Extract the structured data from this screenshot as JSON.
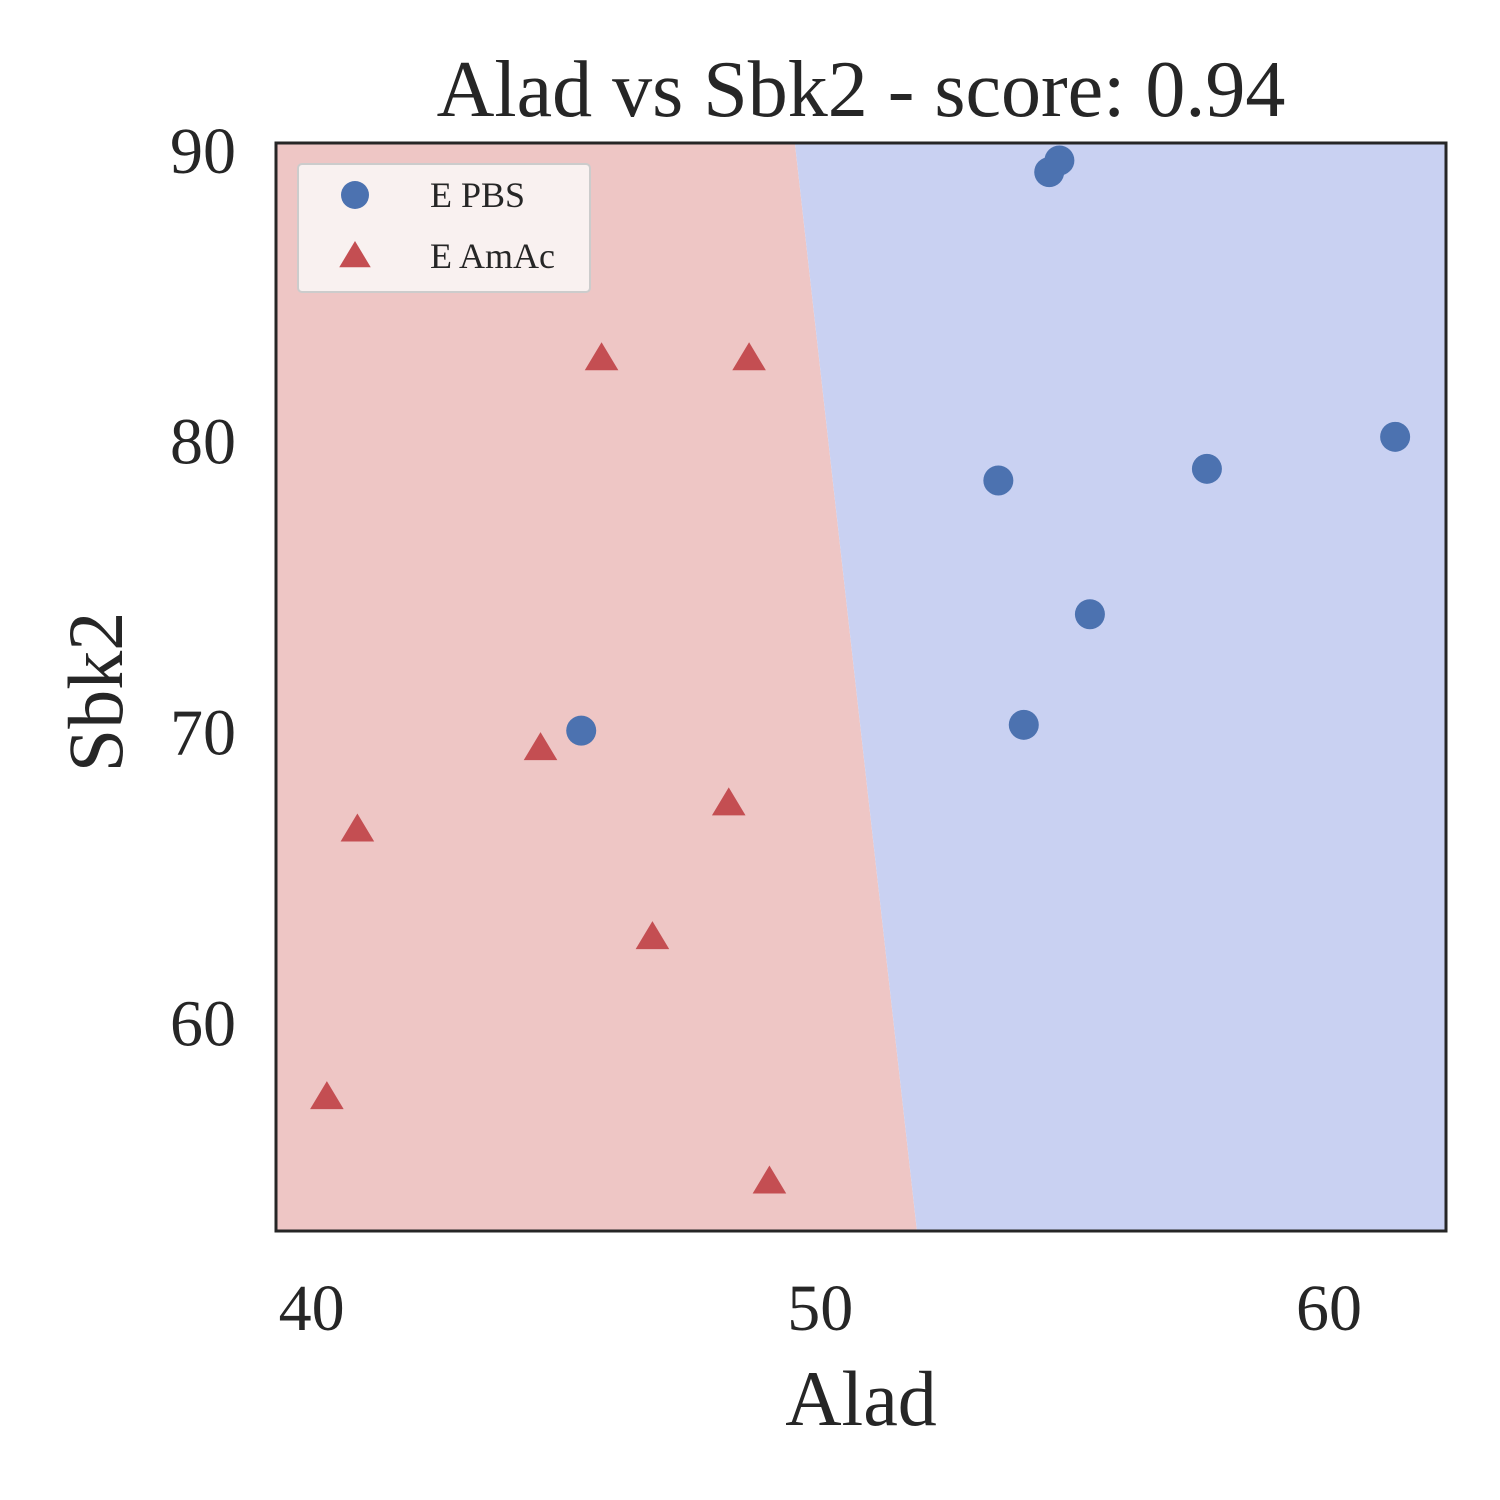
{
  "chart_data": {
    "type": "scatter",
    "title": "Alad vs Sbk2 - score: 0.94",
    "xlabel": "Alad",
    "ylabel": "Sbk2",
    "xlim": [
      39.3,
      62.3
    ],
    "ylim": [
      52.8,
      90.2
    ],
    "xticks": [
      40,
      50,
      60
    ],
    "yticks": [
      60,
      70,
      80,
      90
    ],
    "grid": false,
    "legend_position": "top-left",
    "decision_boundary": {
      "top": {
        "x": 49.5,
        "y": 90.2
      },
      "bottom": {
        "x": 51.9,
        "y": 52.8
      }
    },
    "region_colors": {
      "left": "#eec6c5",
      "right": "#c9d1f2"
    },
    "series": [
      {
        "name": "E PBS",
        "marker": "circle",
        "color": "#4c72b0",
        "points": [
          [
            54.5,
            89.2
          ],
          [
            54.7,
            89.6
          ],
          [
            53.5,
            78.6
          ],
          [
            57.6,
            79.0
          ],
          [
            61.3,
            80.1
          ],
          [
            55.3,
            74.0
          ],
          [
            54.0,
            70.2
          ],
          [
            45.3,
            70.0
          ]
        ]
      },
      {
        "name": "E AmAc",
        "marker": "triangle",
        "color": "#c44e52",
        "points": [
          [
            45.7,
            82.8
          ],
          [
            48.6,
            82.8
          ],
          [
            44.5,
            69.4
          ],
          [
            48.2,
            67.5
          ],
          [
            40.9,
            66.6
          ],
          [
            46.7,
            62.9
          ],
          [
            40.3,
            57.4
          ],
          [
            49.0,
            54.5
          ]
        ]
      }
    ]
  }
}
